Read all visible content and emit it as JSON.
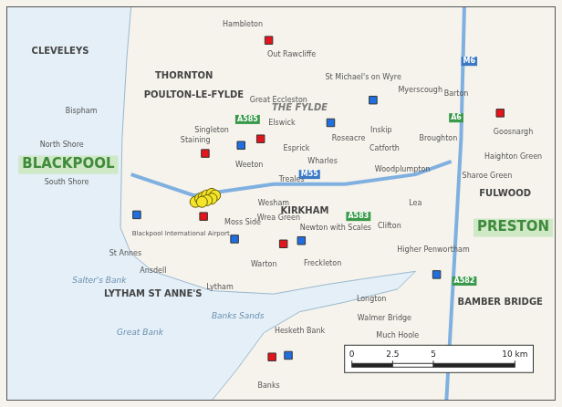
{
  "chart_data": {
    "type": "scatter",
    "xlim": [
      0,
      33.7
    ],
    "ylim": [
      0,
      24.4
    ],
    "grid": false,
    "tick_labels": false,
    "series": [
      {
        "color": "#f2e52a",
        "marker": "circle",
        "x": [
          11.6,
          11.9,
          12.1,
          12.3,
          12.6,
          12.8,
          12.6,
          12.3,
          12.0
        ],
        "y": [
          12.3,
          12.5,
          12.6,
          12.7,
          12.8,
          12.7,
          12.5,
          12.4,
          12.3
        ]
      },
      {
        "color": "#e3141b",
        "marker": "square",
        "x": [
          16.1,
          30.3,
          15.6,
          12.2,
          12.1,
          17.0,
          16.3
        ],
        "y": [
          22.3,
          17.8,
          16.2,
          15.3,
          11.4,
          9.7,
          2.7
        ]
      },
      {
        "color": "#1f6fe0",
        "marker": "square",
        "x": [
          22.5,
          19.9,
          14.4,
          8.0,
          14.0,
          18.1,
          26.4,
          17.3
        ],
        "y": [
          18.6,
          17.2,
          15.8,
          11.5,
          10.0,
          9.9,
          7.8,
          2.8
        ]
      }
    ],
    "sea": [
      [
        0,
        24.4
      ],
      [
        7.65,
        24.4
      ],
      [
        7.38,
        21.1
      ],
      [
        7.1,
        16.2
      ],
      [
        7.0,
        10.7
      ],
      [
        7.65,
        9.1
      ],
      [
        9.0,
        8.0
      ],
      [
        12.6,
        6.8
      ],
      [
        16.4,
        6.6
      ],
      [
        19.7,
        7.2
      ],
      [
        23.0,
        7.7
      ],
      [
        25.1,
        8.0
      ],
      [
        24.0,
        6.9
      ],
      [
        20.8,
        6.1
      ],
      [
        18.0,
        5.5
      ],
      [
        15.8,
        4.2
      ],
      [
        14.2,
        2.0
      ],
      [
        12.6,
        0
      ],
      [
        0,
        0
      ]
    ],
    "roads": [
      {
        "color": "#7fb0e0",
        "points": [
          [
            7.65,
            14.0
          ],
          [
            11.5,
            12.7
          ],
          [
            16.4,
            13.4
          ],
          [
            20.8,
            13.4
          ],
          [
            25.1,
            14.0
          ],
          [
            27.3,
            14.8
          ]
        ]
      },
      {
        "color": "#7fb0e0",
        "points": [
          [
            28.1,
            24.4
          ],
          [
            27.9,
            16.2
          ],
          [
            27.6,
            10.7
          ],
          [
            27.0,
            0
          ]
        ]
      }
    ],
    "annotations": [
      {
        "text": "CLEVELEYS",
        "x": 3.3,
        "y": 21.6,
        "style": "town"
      },
      {
        "text": "THORNTON",
        "x": 10.9,
        "y": 20.1,
        "style": "town"
      },
      {
        "text": "POULTON-LE-FYLDE",
        "x": 11.5,
        "y": 18.9,
        "style": "town"
      },
      {
        "text": "Bispham",
        "x": 4.6,
        "y": 17.9,
        "style": "village"
      },
      {
        "text": "North Shore",
        "x": 3.4,
        "y": 15.8,
        "style": "village"
      },
      {
        "text": "BLACKPOOL",
        "x": 3.8,
        "y": 14.6,
        "style": "city"
      },
      {
        "text": "South Shore",
        "x": 3.7,
        "y": 13.5,
        "style": "village"
      },
      {
        "text": "Blackpool International Airport",
        "x": 10.7,
        "y": 10.3,
        "style": "small"
      },
      {
        "text": "Moss Side",
        "x": 14.5,
        "y": 11.0,
        "style": "village"
      },
      {
        "text": "Wrea Green",
        "x": 16.7,
        "y": 11.3,
        "style": "village"
      },
      {
        "text": "St Annes",
        "x": 7.3,
        "y": 9.1,
        "style": "village"
      },
      {
        "text": "LYTHAM ST ANNE'S",
        "x": 9.0,
        "y": 6.6,
        "style": "town"
      },
      {
        "text": "Salter's Bank",
        "x": 5.7,
        "y": 7.4,
        "style": "sea"
      },
      {
        "text": "Great Bank",
        "x": 8.2,
        "y": 4.2,
        "style": "sea"
      },
      {
        "text": "Banks Sands",
        "x": 14.2,
        "y": 5.2,
        "style": "sea"
      },
      {
        "text": "Hambleton",
        "x": 14.5,
        "y": 23.3,
        "style": "village"
      },
      {
        "text": "Out Rawcliffe",
        "x": 17.5,
        "y": 21.4,
        "style": "village"
      },
      {
        "text": "Great Eccleston",
        "x": 16.7,
        "y": 18.6,
        "style": "village"
      },
      {
        "text": "Elswick",
        "x": 16.9,
        "y": 17.2,
        "style": "village"
      },
      {
        "text": "Singleton",
        "x": 12.6,
        "y": 16.7,
        "style": "village"
      },
      {
        "text": "Staining",
        "x": 11.6,
        "y": 16.1,
        "style": "village"
      },
      {
        "text": "Weeton",
        "x": 14.9,
        "y": 14.6,
        "style": "village"
      },
      {
        "text": "Esprick",
        "x": 17.8,
        "y": 15.6,
        "style": "village"
      },
      {
        "text": "THE FYLDE",
        "x": 18.0,
        "y": 18.1,
        "style": "region"
      },
      {
        "text": "Roseacre",
        "x": 21.0,
        "y": 16.2,
        "style": "village"
      },
      {
        "text": "Inskip",
        "x": 23.0,
        "y": 16.7,
        "style": "village"
      },
      {
        "text": "Wharles",
        "x": 19.4,
        "y": 14.8,
        "style": "village"
      },
      {
        "text": "Treales",
        "x": 17.5,
        "y": 13.7,
        "style": "village"
      },
      {
        "text": "Wesham",
        "x": 16.4,
        "y": 12.2,
        "style": "village"
      },
      {
        "text": "KIRKHAM",
        "x": 18.3,
        "y": 11.7,
        "style": "town"
      },
      {
        "text": "Woodplumpton",
        "x": 24.3,
        "y": 14.3,
        "style": "village"
      },
      {
        "text": "Catforth",
        "x": 23.2,
        "y": 15.6,
        "style": "village"
      },
      {
        "text": "St Michael's on Wyre",
        "x": 21.9,
        "y": 20.0,
        "style": "village"
      },
      {
        "text": "Myerscough",
        "x": 25.4,
        "y": 19.2,
        "style": "village"
      },
      {
        "text": "Broughton",
        "x": 26.5,
        "y": 16.2,
        "style": "village"
      },
      {
        "text": "Barton",
        "x": 27.6,
        "y": 19.0,
        "style": "village"
      },
      {
        "text": "Goosnargh",
        "x": 31.1,
        "y": 16.6,
        "style": "village"
      },
      {
        "text": "Haighton Green",
        "x": 31.1,
        "y": 15.1,
        "style": "village"
      },
      {
        "text": "Sharoe Green",
        "x": 29.5,
        "y": 13.9,
        "style": "village"
      },
      {
        "text": "FULWOOD",
        "x": 30.6,
        "y": 12.8,
        "style": "town"
      },
      {
        "text": "PRESTON",
        "x": 31.1,
        "y": 10.7,
        "style": "city"
      },
      {
        "text": "Lea",
        "x": 25.1,
        "y": 12.2,
        "style": "village"
      },
      {
        "text": "Clifton",
        "x": 23.5,
        "y": 10.8,
        "style": "village"
      },
      {
        "text": "Newton with Scales",
        "x": 20.2,
        "y": 10.7,
        "style": "village"
      },
      {
        "text": "Ansdell",
        "x": 9.0,
        "y": 8.0,
        "style": "village"
      },
      {
        "text": "Lytham",
        "x": 13.1,
        "y": 7.0,
        "style": "village"
      },
      {
        "text": "Warton",
        "x": 15.8,
        "y": 8.4,
        "style": "village"
      },
      {
        "text": "Freckleton",
        "x": 19.4,
        "y": 8.5,
        "style": "village"
      },
      {
        "text": "Longton",
        "x": 22.4,
        "y": 6.3,
        "style": "village"
      },
      {
        "text": "Higher Penwortham",
        "x": 26.2,
        "y": 9.3,
        "style": "village"
      },
      {
        "text": "BAMBER BRIDGE",
        "x": 30.3,
        "y": 6.1,
        "style": "town"
      },
      {
        "text": "Walmer Bridge",
        "x": 23.2,
        "y": 5.1,
        "style": "village"
      },
      {
        "text": "Much Hoole",
        "x": 24.0,
        "y": 4.0,
        "style": "village"
      },
      {
        "text": "Hesketh Bank",
        "x": 18.0,
        "y": 4.3,
        "style": "village"
      },
      {
        "text": "Banks",
        "x": 16.1,
        "y": 0.9,
        "style": "village"
      },
      {
        "text": "A585",
        "x": 14.8,
        "y": 17.4,
        "style": "road"
      },
      {
        "text": "A583",
        "x": 21.6,
        "y": 11.4,
        "style": "road"
      },
      {
        "text": "A6",
        "x": 27.6,
        "y": 17.5,
        "style": "road"
      },
      {
        "text": "A582",
        "x": 28.1,
        "y": 7.4,
        "style": "road"
      },
      {
        "text": "M55",
        "x": 18.6,
        "y": 14.0,
        "style": "motorway"
      },
      {
        "text": "M6",
        "x": 28.4,
        "y": 21.0,
        "style": "motorway"
      }
    ],
    "scale_bar": {
      "x": 21.2,
      "y": 2.3,
      "ticks": [
        0,
        2.5,
        5,
        {
          "value": 10,
          "label": "10 km"
        }
      ]
    }
  }
}
